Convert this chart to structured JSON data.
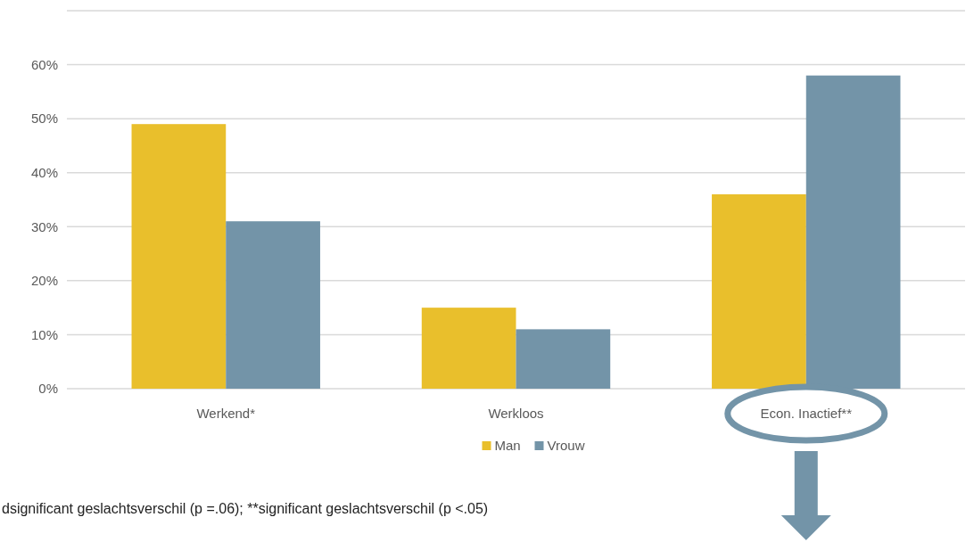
{
  "chart_data": {
    "type": "bar",
    "categories": [
      "Werkend*",
      "Werkloos",
      "Econ. Inactief**"
    ],
    "series": [
      {
        "name": "Man",
        "color": "#e9bf2c",
        "values": [
          49,
          15,
          36
        ]
      },
      {
        "name": "Vrouw",
        "color": "#7394a8",
        "values": [
          31,
          11,
          58
        ]
      }
    ],
    "ylim": [
      0,
      70
    ],
    "yticks": [
      {
        "value": 0,
        "label": "0%"
      },
      {
        "value": 10,
        "label": "10%"
      },
      {
        "value": 20,
        "label": "20%"
      },
      {
        "value": 30,
        "label": "30%"
      },
      {
        "value": 40,
        "label": "40%"
      },
      {
        "value": 50,
        "label": "50%"
      },
      {
        "value": 60,
        "label": "60%"
      },
      {
        "value": 70,
        "label": null
      }
    ],
    "grid": "y",
    "legend": "bottom",
    "annotations": [
      "dsignificant geslachtsverschil (p =.06); **significant geslachtsverschil (p <.05)"
    ]
  }
}
